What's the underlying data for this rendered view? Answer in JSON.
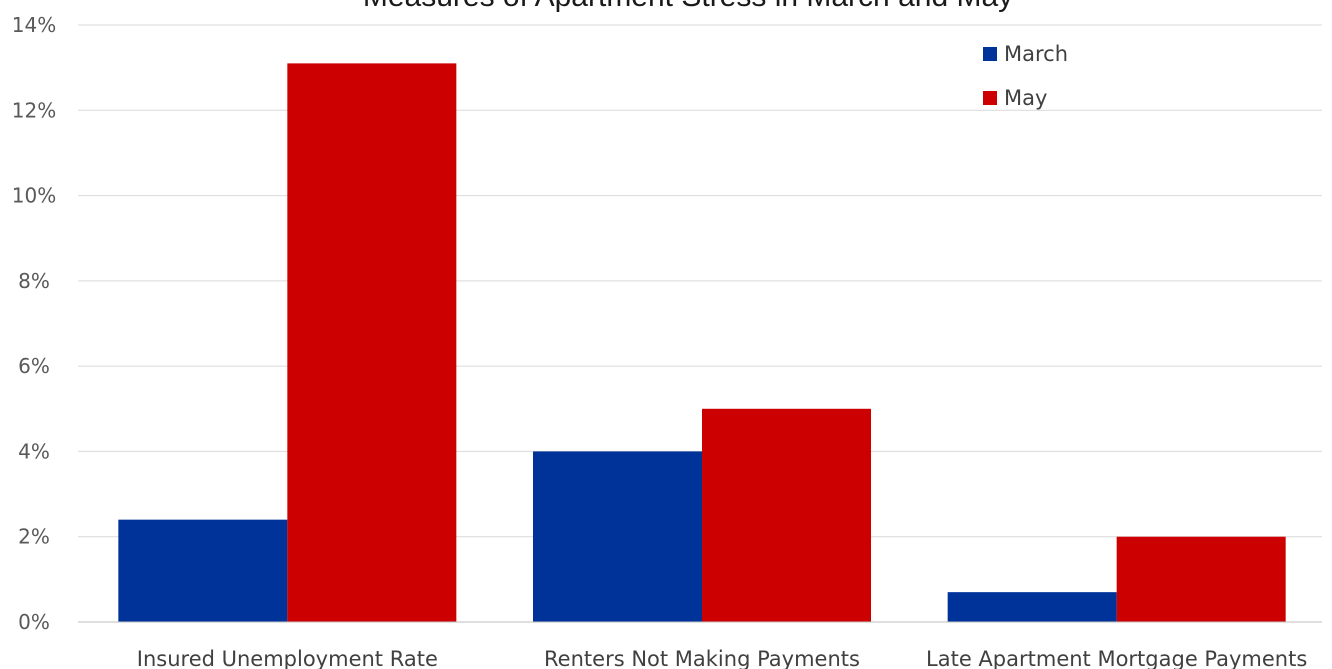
{
  "chart_data": {
    "type": "bar",
    "title": "Measures of Apartment Stress in March and May",
    "xlabel": "",
    "ylabel": "",
    "categories": [
      "Insured Unemployment Rate",
      "Renters Not Making Payments",
      "Late Apartment Mortgage Payments"
    ],
    "series": [
      {
        "name": "March",
        "color": "#003399",
        "values": [
          2.4,
          4.0,
          0.7
        ]
      },
      {
        "name": "May",
        "color": "#cc0000",
        "values": [
          13.1,
          5.0,
          2.0
        ]
      }
    ],
    "ylim": [
      0,
      14
    ],
    "yticks": [
      0,
      2,
      4,
      6,
      8,
      10,
      12,
      14
    ],
    "ytick_labels": [
      "0%",
      "2%",
      "4%",
      "6%",
      "8%",
      "10%",
      "12%",
      "14%"
    ],
    "grid": true,
    "legend": "top-right"
  }
}
